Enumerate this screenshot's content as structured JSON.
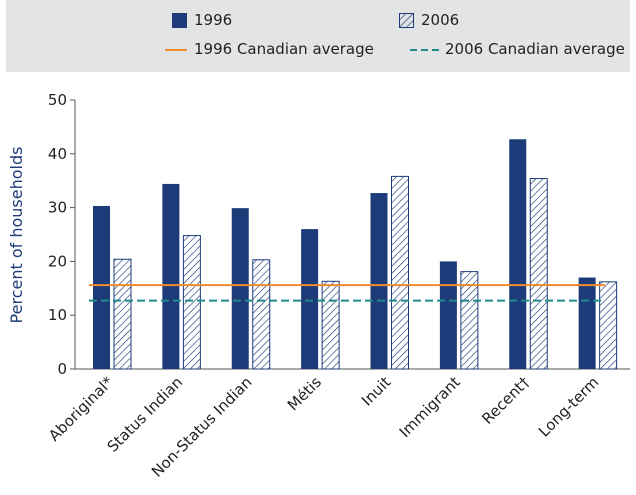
{
  "legend": {
    "s1996": "1996",
    "s2006": "2006",
    "avg1996": "1996 Canadian average",
    "avg2006": "2006 Canadian average"
  },
  "chart_data": {
    "type": "bar",
    "title": "",
    "xlabel": "",
    "ylabel": "Percent of households",
    "ylim": [
      0,
      50
    ],
    "yticks": [
      0,
      10,
      20,
      30,
      40,
      50
    ],
    "grid": false,
    "legend_position": "top",
    "categories": [
      "Aboriginal*",
      "Status Indian",
      "Non-Status Indian",
      "Métis",
      "Inuit",
      "Immigrant",
      "Recent†",
      "Long-term"
    ],
    "category_markers": [
      "*",
      "",
      "",
      "",
      "",
      "",
      "†",
      ""
    ],
    "series": [
      {
        "name": "1996",
        "values": [
          30.3,
          34.4,
          29.9,
          26.0,
          32.7,
          20.0,
          42.7,
          17.0
        ],
        "color": "#1c3b78",
        "pattern": "solid"
      },
      {
        "name": "2006",
        "values": [
          20.4,
          24.8,
          20.3,
          16.3,
          35.8,
          18.1,
          35.4,
          16.2
        ],
        "color": "#1c3b78",
        "pattern": "hatched"
      }
    ],
    "reference_lines": [
      {
        "name": "1996 Canadian average",
        "value": 15.6,
        "color": "#f08a2c",
        "style": "solid"
      },
      {
        "name": "2006 Canadian average",
        "value": 12.7,
        "color": "#1f8a8a",
        "style": "dashed"
      }
    ],
    "colors": {
      "axis": "#555555",
      "ylabel": "#1c3b78",
      "legend_bg": "#e3e4e6"
    }
  }
}
